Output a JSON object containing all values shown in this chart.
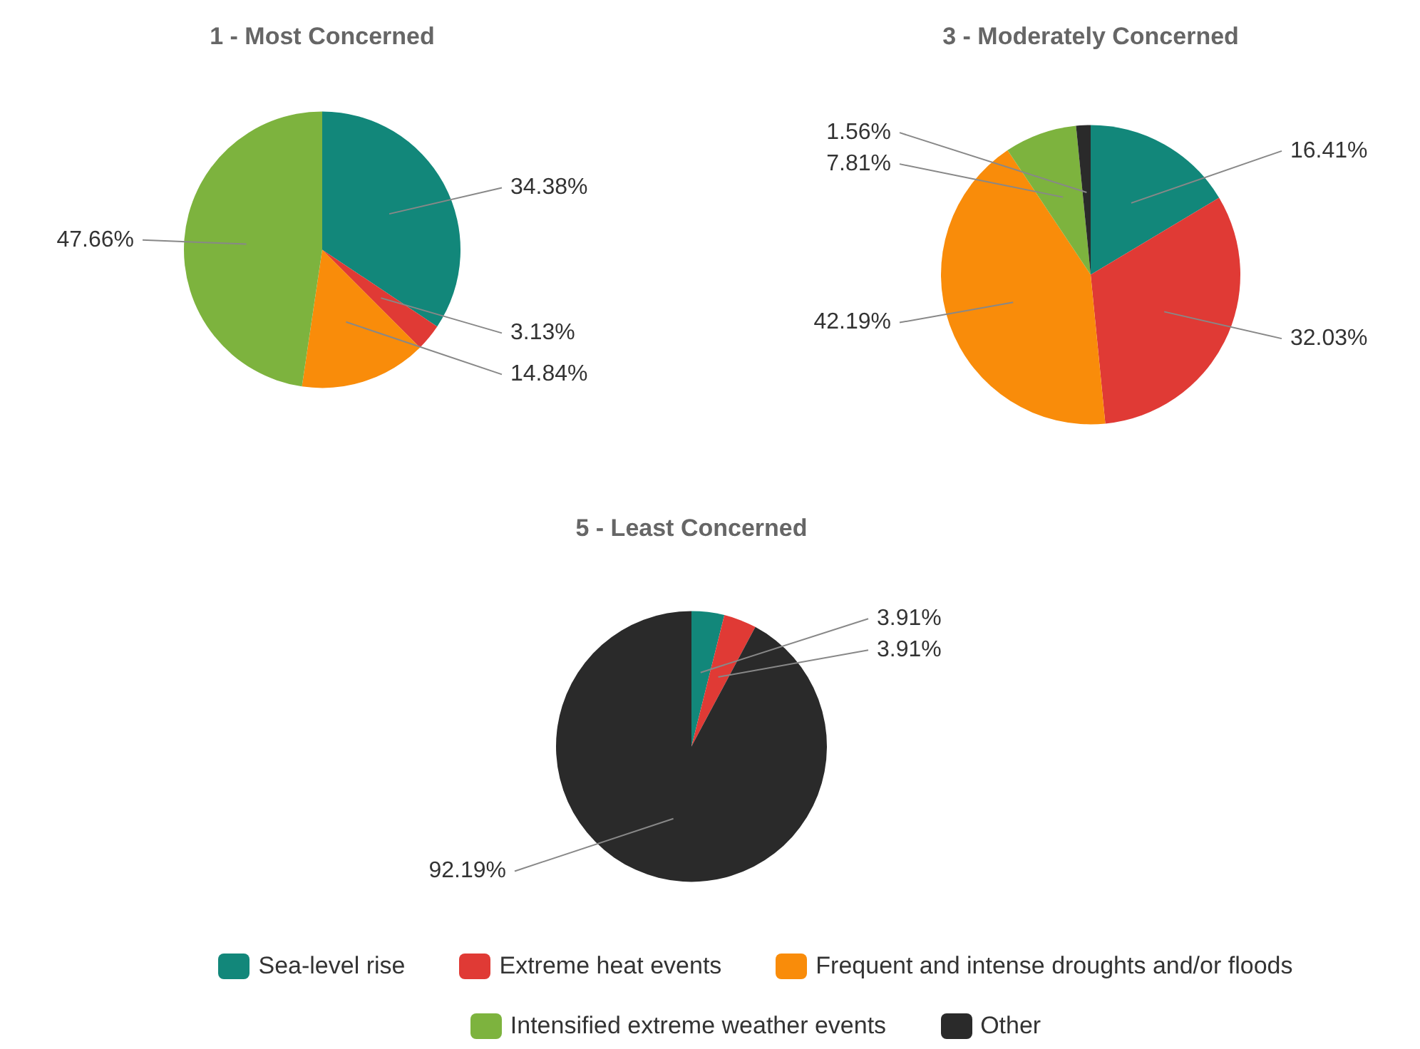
{
  "chart_data": [
    {
      "type": "pie",
      "title": "1 - Most Concerned",
      "categories": [
        "Sea-level rise",
        "Extreme heat events",
        "Frequent and intense droughts and/or floods",
        "Intensified extreme weather events",
        "Other"
      ],
      "values": [
        34.38,
        3.13,
        14.84,
        47.66,
        0
      ],
      "colors": [
        "#12877a",
        "#e03a35",
        "#f98c0a",
        "#7db33e",
        "#2a2a2a"
      ],
      "value_labels": [
        "34.38%",
        "3.13%",
        "14.84%",
        "47.66%",
        null
      ],
      "legend": "bottom"
    },
    {
      "type": "pie",
      "title": "3 - Moderately Concerned",
      "categories": [
        null,
        null,
        null,
        null,
        null
      ],
      "values": [
        16.41,
        32.03,
        42.19,
        7.81,
        1.56
      ],
      "colors": [
        "#12877a",
        "#e03a35",
        "#f98c0a",
        "#7db33e",
        "#2a2a2a"
      ],
      "value_labels": [
        "16.41%",
        "32.03%",
        "42.19%",
        "7.81%",
        "1.56%"
      ]
    },
    {
      "type": "pie",
      "title": "5 - Least Concerned",
      "categories": [
        null,
        null,
        null,
        null,
        null
      ],
      "values": [
        3.91,
        3.91,
        0,
        0,
        92.19
      ],
      "colors": [
        "#12877a",
        "#e03a35",
        "#f98c0a",
        "#7db33e",
        "#2a2a2a"
      ],
      "value_labels": [
        "3.91%",
        "3.91%",
        null,
        null,
        "92.19%"
      ]
    }
  ]
}
